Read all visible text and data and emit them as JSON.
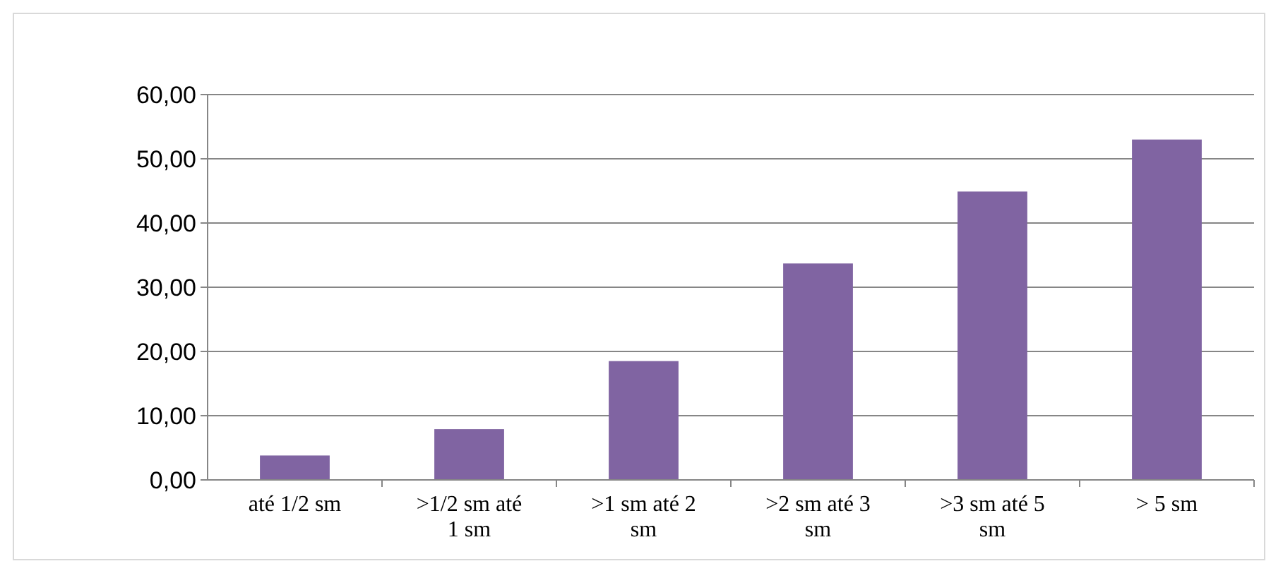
{
  "chart_data": {
    "type": "bar",
    "categories": [
      "até 1/2 sm",
      ">1/2 sm até 1 sm",
      ">1 sm até 2 sm",
      ">2 sm até 3 sm",
      ">3 sm até 5 sm",
      "> 5 sm"
    ],
    "values": [
      3.8,
      7.9,
      18.5,
      33.7,
      44.9,
      53.0
    ],
    "color": "#8064a2",
    "ylim": [
      0,
      60
    ],
    "yticks": [
      {
        "value": 0,
        "label": "0,00"
      },
      {
        "value": 10,
        "label": "10,00"
      },
      {
        "value": 20,
        "label": "20,00"
      },
      {
        "value": 30,
        "label": "30,00"
      },
      {
        "value": 40,
        "label": "40,00"
      },
      {
        "value": 50,
        "label": "50,00"
      },
      {
        "value": 60,
        "label": "60,00"
      }
    ],
    "grid": "y"
  }
}
